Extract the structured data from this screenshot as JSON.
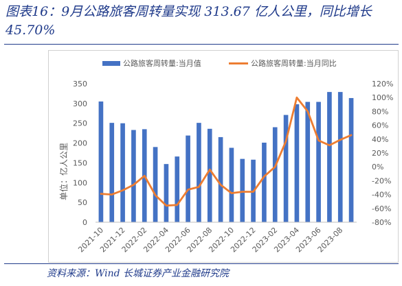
{
  "title": "图表16：9月公路旅客周转量实现 313.67 亿人公里，同比增长 45.70%",
  "source": "资料来源：Wind 长城证券产业金融研究院",
  "colors": {
    "bar": "#4472c4",
    "line": "#ed7d31",
    "text": "#595959",
    "title": "#1f3a8a"
  },
  "chart_data": {
    "type": "bar",
    "legend_position": "top",
    "ylabel_left": "单位：亿人公里",
    "left_axis": {
      "min": 0,
      "max": 350,
      "step": 50,
      "ticks": [
        "0",
        "50",
        "100",
        "150",
        "200",
        "250",
        "300",
        "350"
      ]
    },
    "right_axis": {
      "min": -80,
      "max": 120,
      "step": 20,
      "ticks": [
        "-80%",
        "-60%",
        "-40%",
        "-20%",
        "0%",
        "20%",
        "40%",
        "60%",
        "80%",
        "100%",
        "120%"
      ]
    },
    "x_tick_labels": [
      "2021-10",
      "2021-12",
      "2022-02",
      "2022-04",
      "2022-06",
      "2022-08",
      "2022-10",
      "2022-12",
      "2023-02",
      "2023-04",
      "2023-06",
      "2023-08"
    ],
    "categories": [
      "2021-10",
      "2021-11",
      "2021-12",
      "2022-01",
      "2022-02",
      "2022-03",
      "2022-04",
      "2022-05",
      "2022-06",
      "2022-07",
      "2022-08",
      "2022-09",
      "2022-10",
      "2022-11",
      "2022-12",
      "2023-01",
      "2023-02",
      "2023-03",
      "2023-04",
      "2023-05",
      "2023-06",
      "2023-07",
      "2023-08",
      "2023-09"
    ],
    "series": [
      {
        "name": "公路旅客周转量:当月值",
        "type": "bar",
        "axis": "left",
        "values": [
          305,
          251,
          250,
          233,
          235,
          190,
          147,
          166,
          219,
          251,
          236,
          215,
          188,
          160,
          158,
          201,
          240,
          271,
          298,
          304,
          304,
          329,
          329,
          313.67
        ]
      },
      {
        "name": "公路旅客周转量:当月同比",
        "type": "line",
        "axis": "right",
        "values": [
          -39,
          -40,
          -34,
          -26,
          -13,
          -41,
          -56,
          -55,
          -33,
          -29,
          -4,
          -26,
          -38,
          -36,
          -36,
          -14,
          0,
          37,
          100,
          80,
          38,
          31,
          39,
          45.7
        ]
      }
    ],
    "grid": false
  }
}
